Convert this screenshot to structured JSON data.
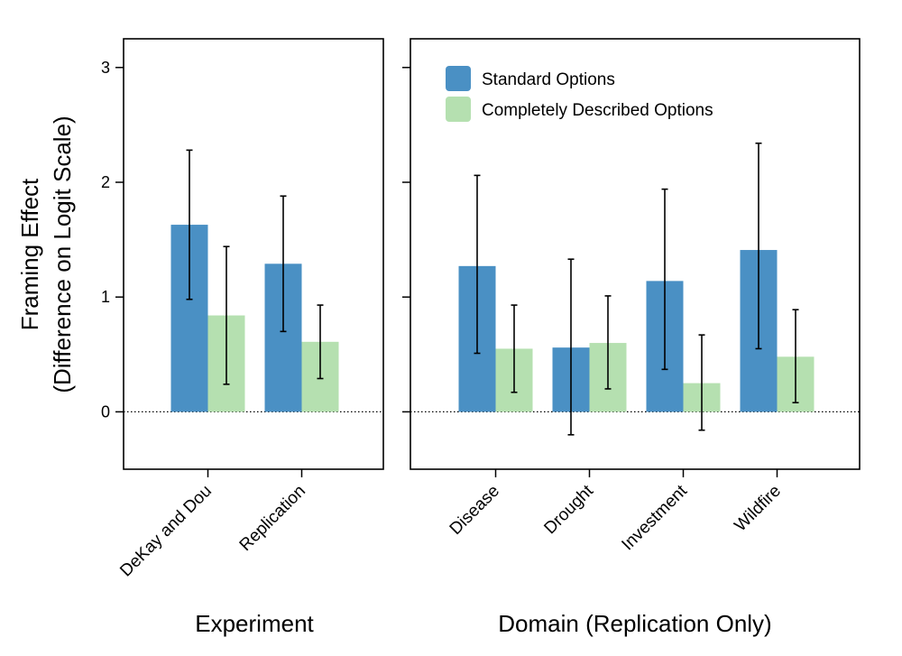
{
  "chart_data": {
    "type": "bar",
    "ylabel_line1": "Framing Effect",
    "ylabel_line2": "(Difference on Logit Scale)",
    "ylim": [
      -0.5,
      3.25
    ],
    "yticks": [
      "0",
      "1",
      "2",
      "3"
    ],
    "ytick_values": [
      0,
      1,
      2,
      3
    ],
    "grid": false,
    "reference_line": 0,
    "legend": {
      "placement": "top-left of right panel",
      "entries": [
        {
          "label": "Standard Options",
          "color": "#4a90c4"
        },
        {
          "label": "Completely Described Options",
          "color": "#b5e0b0"
        }
      ]
    },
    "series_colors": [
      "#4a90c4",
      "#b5e0b0"
    ],
    "panels": [
      {
        "xlabel": "Experiment",
        "categories": [
          "DeKay and Dou",
          "Replication"
        ],
        "series": [
          {
            "name": "Standard Options",
            "values": [
              1.63,
              1.29
            ],
            "ci_low": [
              0.98,
              0.7
            ],
            "ci_high": [
              2.28,
              1.88
            ]
          },
          {
            "name": "Completely Described Options",
            "values": [
              0.84,
              0.61
            ],
            "ci_low": [
              0.24,
              0.29
            ],
            "ci_high": [
              1.44,
              0.93
            ]
          }
        ]
      },
      {
        "xlabel": "Domain (Replication Only)",
        "categories": [
          "Disease",
          "Drought",
          "Investment",
          "Wildfire"
        ],
        "series": [
          {
            "name": "Standard Options",
            "values": [
              1.27,
              0.56,
              1.14,
              1.41
            ],
            "ci_low": [
              0.51,
              -0.2,
              0.37,
              0.55
            ],
            "ci_high": [
              2.06,
              1.33,
              1.94,
              2.34
            ]
          },
          {
            "name": "Completely Described Options",
            "values": [
              0.55,
              0.6,
              0.25,
              0.48
            ],
            "ci_low": [
              0.17,
              0.2,
              -0.16,
              0.08
            ],
            "ci_high": [
              0.93,
              1.01,
              0.67,
              0.89
            ]
          }
        ]
      }
    ]
  }
}
